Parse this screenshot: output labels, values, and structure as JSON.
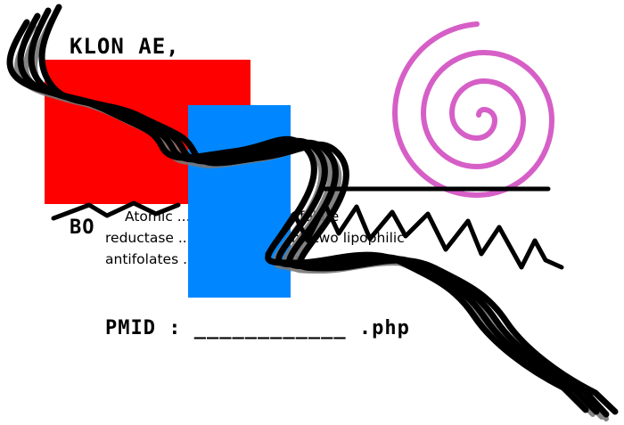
{
  "captcha": {
    "author_line": "KLON AE,",
    "author_line2": "BO",
    "text_line1": "Atomic ... human dihydrofolate",
    "text_line2": "reductase ... with NADPH and two lipophilic",
    "text_line3": "antifolates ... 05 a resolution.",
    "pmid_label": "PMID : ____________ .php",
    "colors": {
      "red_block": "#ff0000",
      "blue_block": "#0087ff",
      "spiral": "#d65fc7",
      "squiggle": "#000000",
      "shadow": "#777777"
    }
  }
}
